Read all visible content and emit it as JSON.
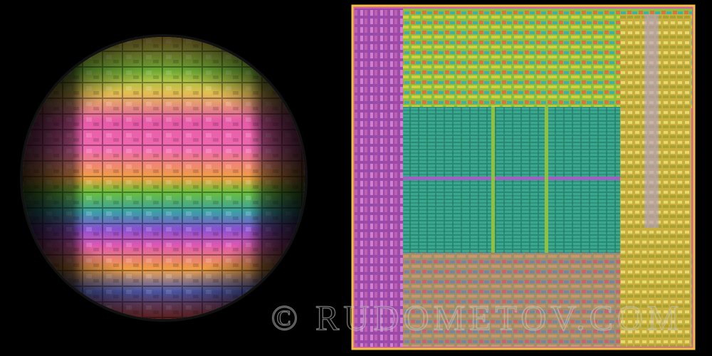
{
  "watermark": "© RUDOMETOV.COM"
}
